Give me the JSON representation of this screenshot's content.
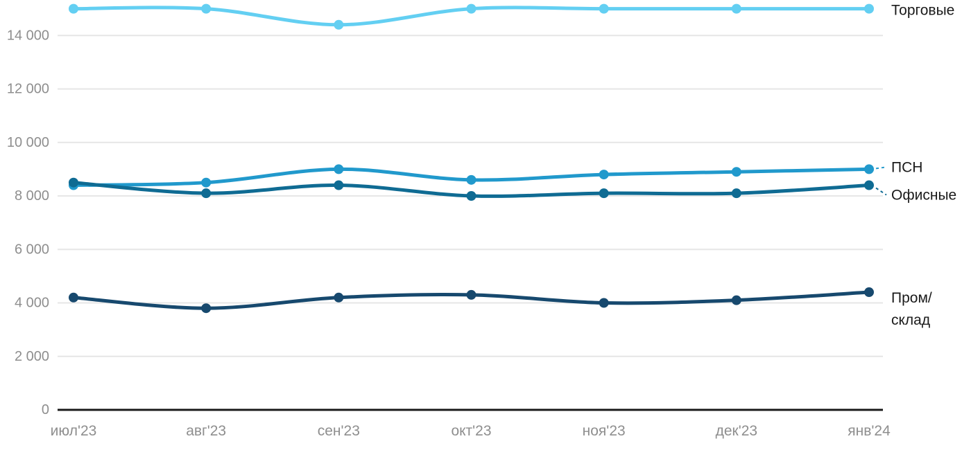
{
  "chart_data": {
    "type": "line",
    "title": "",
    "xlabel": "",
    "ylabel": "",
    "categories": [
      "июл'23",
      "авг'23",
      "сен'23",
      "окт'23",
      "ноя'23",
      "дек'23",
      "янв'24"
    ],
    "series": [
      {
        "name": "Торговые",
        "slug": "torgovye",
        "values": [
          15000,
          15000,
          14400,
          15000,
          15000,
          15000,
          15000
        ],
        "color": "#63CFF2",
        "label_lines": [
          "Торговые"
        ],
        "label_dy": 2,
        "connector": false
      },
      {
        "name": "ПСН",
        "slug": "psn",
        "values": [
          8400,
          8500,
          9000,
          8600,
          8800,
          8900,
          9000
        ],
        "color": "#2199CC",
        "label_lines": [
          "ПСН"
        ],
        "label_dy": -3,
        "connector": true
      },
      {
        "name": "Офисные",
        "slug": "ofisnye",
        "values": [
          8500,
          8100,
          8400,
          8000,
          8100,
          8100,
          8400
        ],
        "color": "#0F6B93",
        "label_lines": [
          "Офисные"
        ],
        "label_dy": 14,
        "connector": true
      },
      {
        "name": "Пром/склад",
        "slug": "prom-sklad",
        "values": [
          4200,
          3800,
          4200,
          4300,
          4000,
          4100,
          4400
        ],
        "color": "#17496E",
        "label_lines": [
          "Пром/",
          "склад"
        ],
        "label_dy": 8,
        "connector": false
      }
    ],
    "y_ticks": [
      0,
      2000,
      4000,
      6000,
      8000,
      10000,
      12000,
      14000
    ],
    "ylim": [
      0,
      15330
    ],
    "grid": true,
    "legend_position": "right-end-labels",
    "colors": {
      "gridline": "#E6E6E6",
      "axis": "#1A1A1A",
      "tick_label": "#8E8E8E",
      "series_label": "#1A1A1A",
      "background": "#FFFFFF"
    }
  }
}
